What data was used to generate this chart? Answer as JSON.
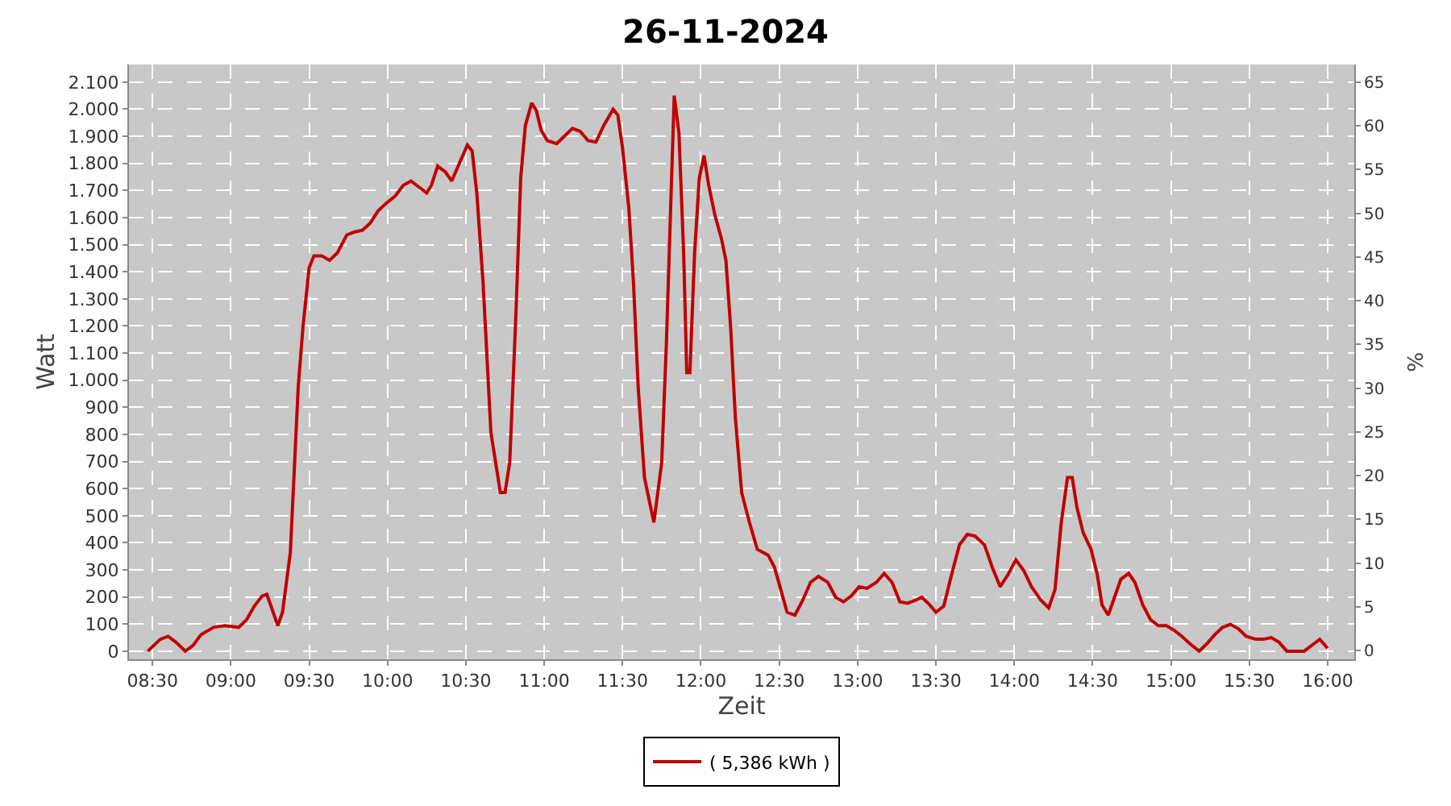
{
  "chart_data": {
    "type": "line",
    "title": "26-11-2024",
    "xlabel": "Zeit",
    "ylabel": "Watt",
    "y2label": "%",
    "x": [
      8.47,
      8.55,
      8.6,
      8.65,
      8.71,
      8.76,
      8.81,
      8.89,
      8.96,
      9.05,
      9.1,
      9.15,
      9.2,
      9.23,
      9.27,
      9.3,
      9.33,
      9.38,
      9.43,
      9.46,
      9.5,
      9.53,
      9.58,
      9.63,
      9.68,
      9.74,
      9.79,
      9.84,
      9.89,
      9.94,
      9.99,
      10.05,
      10.1,
      10.15,
      10.2,
      10.25,
      10.28,
      10.32,
      10.37,
      10.41,
      10.46,
      10.51,
      10.54,
      10.57,
      10.61,
      10.66,
      10.72,
      10.75,
      10.78,
      10.82,
      10.85,
      10.88,
      10.92,
      10.95,
      10.98,
      11.02,
      11.08,
      11.13,
      11.18,
      11.23,
      11.28,
      11.33,
      11.38,
      11.44,
      11.47,
      11.5,
      11.54,
      11.57,
      11.6,
      11.64,
      11.68,
      11.7,
      11.75,
      11.78,
      11.81,
      11.83,
      11.86,
      11.89,
      11.91,
      11.93,
      11.96,
      11.99,
      12.02,
      12.05,
      12.09,
      12.13,
      12.16,
      12.19,
      12.22,
      12.26,
      12.31,
      12.36,
      12.43,
      12.47,
      12.51,
      12.55,
      12.6,
      12.65,
      12.7,
      12.75,
      12.81,
      12.86,
      12.91,
      12.96,
      13.01,
      13.06,
      13.12,
      13.17,
      13.22,
      13.27,
      13.32,
      13.37,
      13.41,
      13.46,
      13.5,
      13.55,
      13.6,
      13.65,
      13.7,
      13.75,
      13.81,
      13.86,
      13.91,
      13.96,
      14.01,
      14.06,
      14.11,
      14.17,
      14.22,
      14.26,
      14.3,
      14.34,
      14.37,
      14.4,
      14.44,
      14.49,
      14.53,
      14.56,
      14.6,
      14.64,
      14.68,
      14.73,
      14.77,
      14.82,
      14.87,
      14.92,
      14.97,
      15.02,
      15.07,
      15.12,
      15.18,
      15.23,
      15.28,
      15.33,
      15.38,
      15.43,
      15.48,
      15.54,
      15.59,
      15.64,
      15.69,
      15.74,
      15.85,
      15.9,
      15.95,
      16.0
    ],
    "series": [
      {
        "name": "( 5,386 kWh )",
        "color": "#c00000",
        "values": [
          0,
          44,
          55,
          33,
          0,
          22,
          61,
          88,
          94,
          88,
          116,
          166,
          204,
          210,
          144,
          94,
          144,
          365,
          973,
          1194,
          1415,
          1459,
          1459,
          1442,
          1470,
          1536,
          1547,
          1553,
          1580,
          1625,
          1652,
          1680,
          1719,
          1735,
          1713,
          1691,
          1719,
          1790,
          1768,
          1735,
          1802,
          1868,
          1846,
          1691,
          1359,
          807,
          586,
          586,
          696,
          1249,
          1746,
          1940,
          2023,
          1995,
          1923,
          1884,
          1873,
          1901,
          1929,
          1918,
          1884,
          1879,
          1940,
          2000,
          1978,
          1857,
          1636,
          1359,
          973,
          641,
          530,
          475,
          696,
          1138,
          1691,
          2050,
          1912,
          1470,
          1028,
          1028,
          1470,
          1746,
          1829,
          1719,
          1608,
          1525,
          1442,
          1194,
          862,
          586,
          475,
          376,
          354,
          309,
          227,
          144,
          133,
          188,
          254,
          276,
          254,
          199,
          182,
          204,
          238,
          232,
          254,
          287,
          254,
          182,
          177,
          188,
          199,
          171,
          144,
          166,
          282,
          392,
          431,
          425,
          392,
          309,
          238,
          282,
          337,
          298,
          238,
          188,
          160,
          227,
          475,
          641,
          641,
          530,
          437,
          376,
          282,
          171,
          133,
          199,
          265,
          287,
          254,
          171,
          116,
          94,
          94,
          77,
          55,
          28,
          0,
          28,
          61,
          88,
          99,
          83,
          55,
          44,
          44,
          50,
          33,
          0,
          0,
          22,
          44,
          11
        ]
      }
    ],
    "xlim": [
      8.35,
      16.17
    ],
    "xticks": [
      {
        "value": 8.5,
        "label": "08:30"
      },
      {
        "value": 9,
        "label": "09:00"
      },
      {
        "value": 9.5,
        "label": "09:30"
      },
      {
        "value": 10,
        "label": "10:00"
      },
      {
        "value": 10.5,
        "label": "10:30"
      },
      {
        "value": 11,
        "label": "11:00"
      },
      {
        "value": 11.5,
        "label": "11:30"
      },
      {
        "value": 12,
        "label": "12:00"
      },
      {
        "value": 12.5,
        "label": "12:30"
      },
      {
        "value": 13,
        "label": "13:00"
      },
      {
        "value": 13.5,
        "label": "13:30"
      },
      {
        "value": 14,
        "label": "14:00"
      },
      {
        "value": 14.5,
        "label": "14:30"
      },
      {
        "value": 15,
        "label": "15:00"
      },
      {
        "value": 15.5,
        "label": "15:30"
      },
      {
        "value": 16,
        "label": "16:00"
      }
    ],
    "ylim": [
      -30,
      2165
    ],
    "yticks": [
      {
        "value": 0,
        "label": "0"
      },
      {
        "value": 100,
        "label": "100"
      },
      {
        "value": 200,
        "label": "200"
      },
      {
        "value": 300,
        "label": "300"
      },
      {
        "value": 400,
        "label": "400"
      },
      {
        "value": 500,
        "label": "500"
      },
      {
        "value": 600,
        "label": "600"
      },
      {
        "value": 700,
        "label": "700"
      },
      {
        "value": 800,
        "label": "800"
      },
      {
        "value": 900,
        "label": "900"
      },
      {
        "value": 1000,
        "label": "1.000"
      },
      {
        "value": 1100,
        "label": "1.100"
      },
      {
        "value": 1200,
        "label": "1.200"
      },
      {
        "value": 1300,
        "label": "1.300"
      },
      {
        "value": 1400,
        "label": "1.400"
      },
      {
        "value": 1500,
        "label": "1.500"
      },
      {
        "value": 1600,
        "label": "1.600"
      },
      {
        "value": 1700,
        "label": "1.700"
      },
      {
        "value": 1800,
        "label": "1.800"
      },
      {
        "value": 1900,
        "label": "1.900"
      },
      {
        "value": 2000,
        "label": "2.000"
      },
      {
        "value": 2100,
        "label": "2.100"
      }
    ],
    "y2lim": [
      -1,
      67
    ],
    "y2ticks": [
      0,
      5,
      10,
      15,
      20,
      25,
      30,
      35,
      40,
      45,
      50,
      55,
      60,
      65
    ],
    "grid": true,
    "legend": "bottom",
    "marker": "none",
    "line_style": "solid"
  }
}
